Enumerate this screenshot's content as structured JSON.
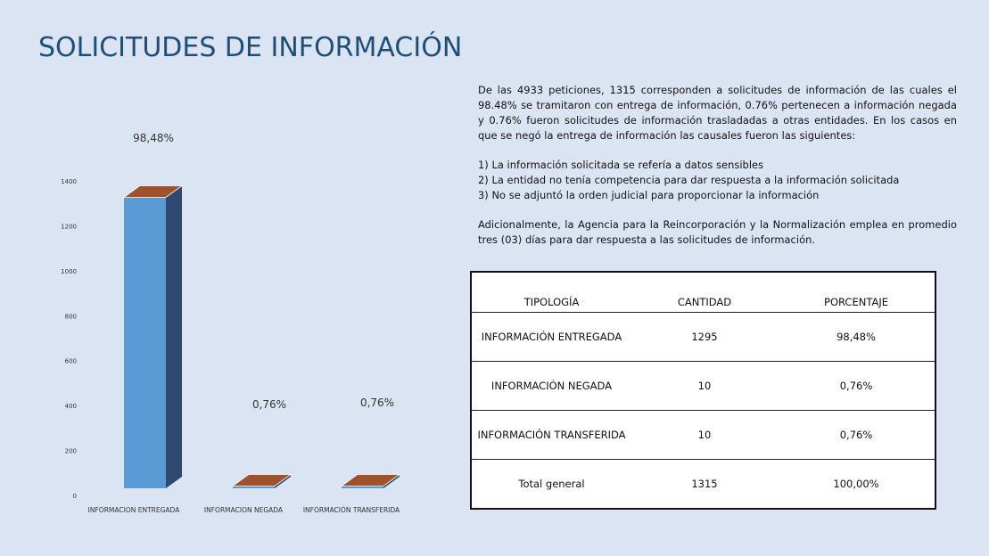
{
  "title": "SOLICITUDES DE INFORMACIÓN",
  "paragraph1": "De las 4933 peticiones, 1315 corresponden a solicitudes de información de las cuales el 98.48% se tramitaron con entrega de información, 0.76% pertenecen a información negada y 0.76% fueron solicitudes de información trasladadas a otras entidades. En los casos en que se negó la entrega de información las causales fueron las siguientes:",
  "causes": [
    "1) La información solicitada se refería a datos sensibles",
    "2) La entidad no tenía competencia para dar respuesta a la información solicitada",
    "3) No se adjuntó la orden judicial para proporcionar la información"
  ],
  "paragraph2": "Adicionalmente, la Agencia para la Reincorporación y la Normalización emplea en promedio tres (03) días para dar respuesta a las solicitudes de información.",
  "table": {
    "headers": [
      "TIPOLOGÍA",
      "CANTIDAD",
      "PORCENTAJE"
    ],
    "rows": [
      [
        "INFORMACIÓN ENTREGADA",
        "1295",
        "98,48%"
      ],
      [
        "INFORMACIÓN NEGADA",
        "10",
        "0,76%"
      ],
      [
        "INFORMACIÓN TRANSFERIDA",
        "10",
        "0,76%"
      ],
      [
        "Total general",
        "1315",
        "100,00%"
      ]
    ]
  },
  "chart_data": {
    "type": "bar",
    "categories": [
      "INFORMACION ENTREGADA",
      "INFORMACION NEGADA",
      "INFORMACIÓN TRANSFERIDA"
    ],
    "values": [
      1295,
      10,
      10
    ],
    "data_labels": [
      "98,48%",
      "0,76%",
      "0,76%"
    ],
    "y_ticks": [
      0,
      200,
      400,
      600,
      800,
      1000,
      1200,
      1400
    ],
    "ylim": [
      0,
      1400
    ],
    "grid": false,
    "legend": "none",
    "colors": {
      "front": "#5b9bd5",
      "side": "#2e4a73",
      "top": "#a0522d"
    }
  }
}
